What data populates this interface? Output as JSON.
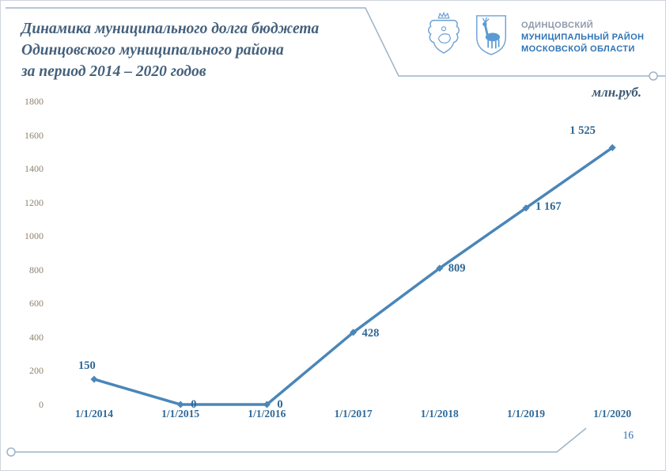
{
  "slide": {
    "title_lines": [
      "Динамика муниципального долга бюджета",
      "Одинцовского муниципального района",
      "за период 2014 – 2020 годов"
    ],
    "units_label": "млн.руб.",
    "page_number": "16"
  },
  "logo": {
    "emblems": [
      "moscow-oblast-coat-of-arms",
      "odintsovo-district-emblem"
    ],
    "org_lines": [
      "ОДИНЦОВСКИЙ",
      "МУНИЦИПАЛЬНЫЙ РАЙОН",
      "МОСКОВСКОЙ ОБЛАСТИ"
    ]
  },
  "colors": {
    "line": "#4a86b8",
    "marker": "#4a86b8",
    "data_label": "#2d6794",
    "x_label": "#2f6a9a",
    "y_tick": "#8e8270",
    "title": "#44607c",
    "decor_line": "#9db4c8",
    "logo_blue": "#2e74b5",
    "emblem_outline": "#6fa0d2"
  },
  "chart_data": {
    "type": "line",
    "title": "Динамика муниципального долга бюджета Одинцовского муниципального района за период 2014 – 2020 годов",
    "ylabel": "млн.руб.",
    "categories": [
      "1/1/2014",
      "1/1/2015",
      "1/1/2016",
      "1/1/2017",
      "1/1/2018",
      "1/1/2019",
      "1/1/2020"
    ],
    "values": [
      150,
      0,
      0,
      428,
      809,
      1167,
      1525
    ],
    "point_labels": [
      "150",
      "0",
      "0",
      "428",
      "809",
      "1 167",
      "1 525"
    ],
    "y_ticks": [
      0,
      200,
      400,
      600,
      800,
      1000,
      1200,
      1400,
      1600,
      1800
    ],
    "ylim": [
      0,
      1800
    ],
    "grid": false,
    "legend": "none",
    "marker": "diamond",
    "line_color": "#4a86b8"
  }
}
